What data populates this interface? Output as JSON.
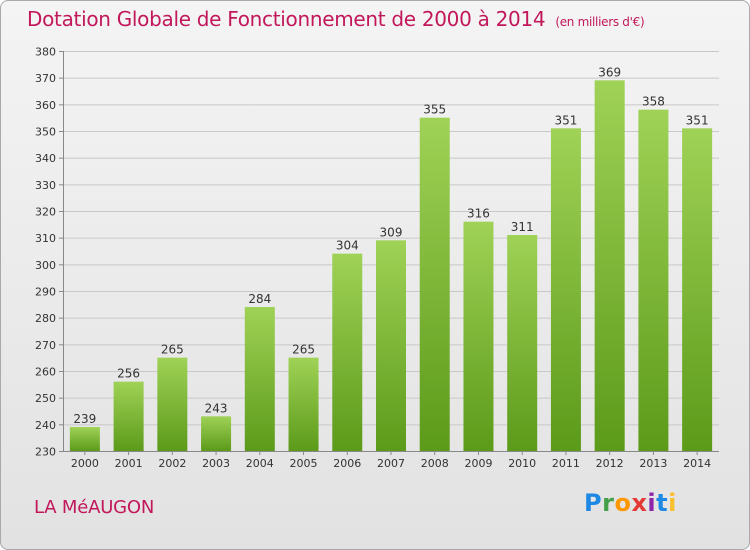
{
  "title": "Dotation Globale de Fonctionnement de 2000 à 2014",
  "subtitle": "(en milliers d'€)",
  "commune": "LA MéAUGON",
  "logo": {
    "text": "Proxiti",
    "letters": [
      "P",
      "r",
      "o",
      "x",
      "i",
      "t",
      "i"
    ],
    "colors": [
      "#1e88e5",
      "#43a047",
      "#ff9800",
      "#e53935",
      "#8e24aa",
      "#1e88e5",
      "#fbc02d"
    ]
  },
  "colors": {
    "title": "#c2185b",
    "bar_top": "#9fd256",
    "bar_bottom": "#5c9a1a",
    "grid": "#c8c8c8"
  },
  "chart_data": {
    "type": "bar",
    "categories": [
      "2000",
      "2001",
      "2002",
      "2003",
      "2004",
      "2005",
      "2006",
      "2007",
      "2008",
      "2009",
      "2010",
      "2011",
      "2012",
      "2013",
      "2014"
    ],
    "values": [
      239,
      256,
      265,
      243,
      284,
      265,
      304,
      309,
      355,
      316,
      311,
      351,
      369,
      358,
      351
    ],
    "ylim": [
      230,
      380
    ],
    "yticks": [
      230,
      240,
      250,
      260,
      270,
      280,
      290,
      300,
      310,
      320,
      330,
      340,
      350,
      360,
      370,
      380
    ],
    "grid": true,
    "data_labels": true
  }
}
